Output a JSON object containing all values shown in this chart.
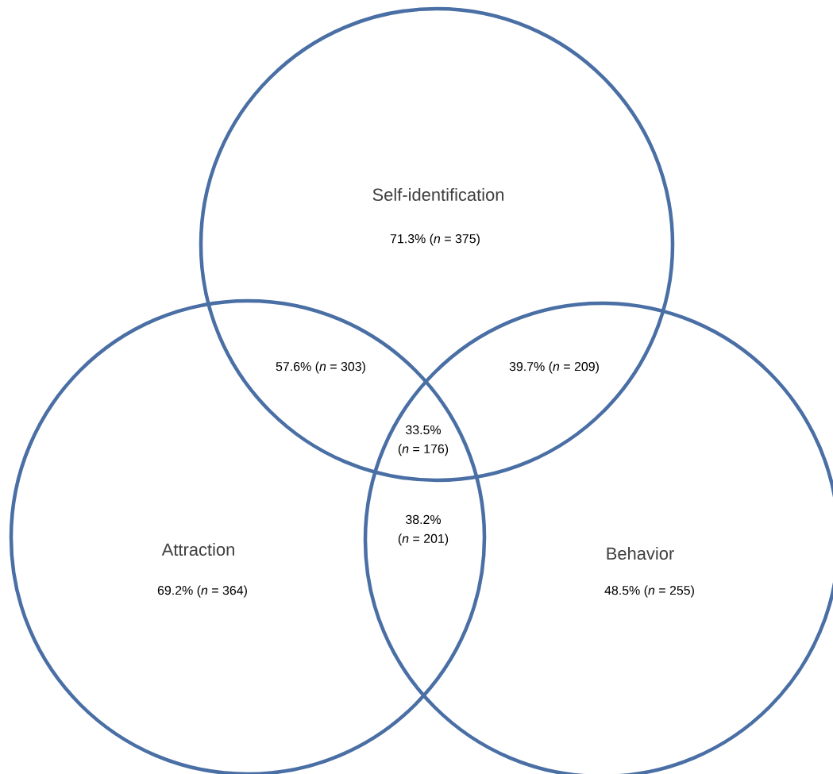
{
  "chart_data": {
    "type": "other",
    "categories": [
      "Self-identification",
      "Attraction",
      "Behavior"
    ],
    "values": [
      71.3,
      69.2,
      48.5
    ],
    "annotations": [
      "% (*n* = 375)",
      "% (*n* = 364)",
      "% (*n* = 255)",
      "57.6% (*n* = 303)",
      "39.7% (*n* = 209)",
      "33.5% (*n* = 176)",
      "38.2% (*n* = 201)"
    ],
    "data_labels": true,
    "colors": [
      "#4a6fa5",
      "#4a6fa5",
      "#4a6fa5"
    ]
  }
}
